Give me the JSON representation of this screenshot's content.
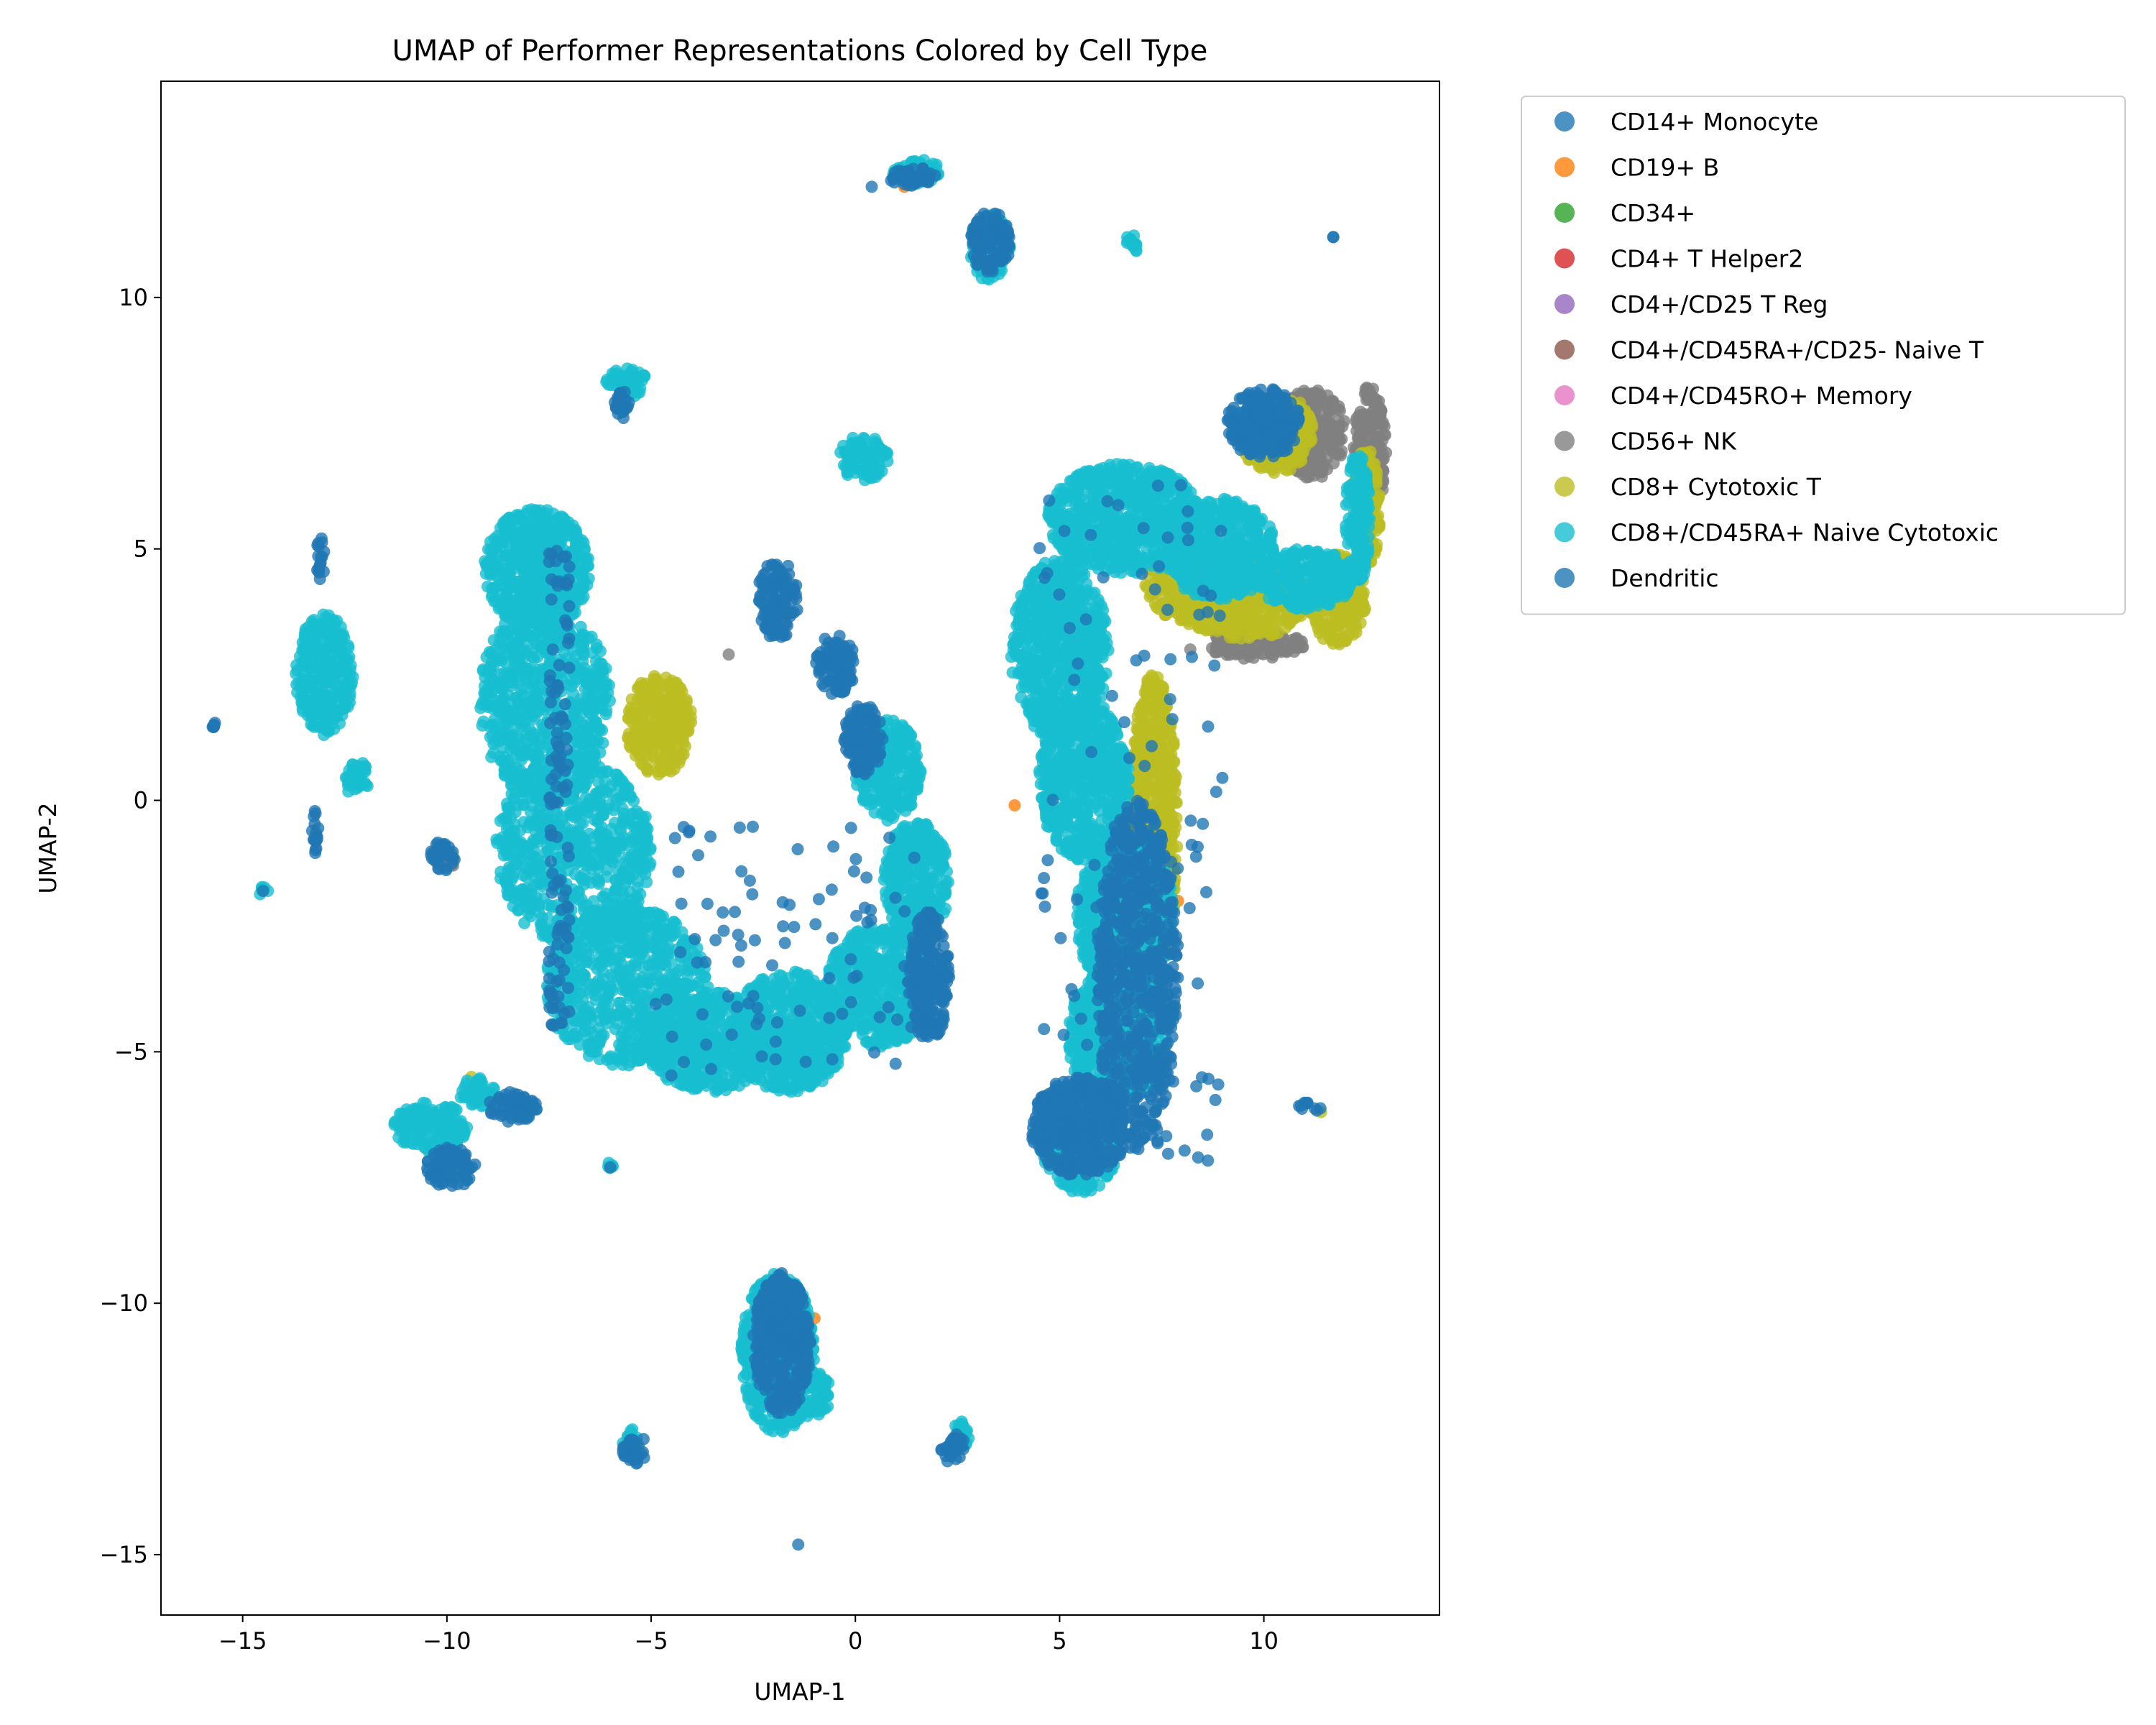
{
  "chart_data": {
    "type": "scatter",
    "title": "UMAP of Performer Representations Colored by Cell Type",
    "xlabel": "UMAP-1",
    "ylabel": "UMAP-2",
    "xlim": [
      -17,
      14.3
    ],
    "ylim": [
      -16.2,
      14.3
    ],
    "xticks": [
      -15,
      -10,
      -5,
      0,
      5,
      10
    ],
    "yticks": [
      -15,
      -10,
      -5,
      0,
      5,
      10
    ],
    "xtick_labels": [
      "−15",
      "−10",
      "−5",
      "0",
      "5",
      "10"
    ],
    "ytick_labels": [
      "−15",
      "−10",
      "−5",
      "0",
      "5",
      "10"
    ],
    "grid": false,
    "legend_position": "outside-upper-right",
    "series": [
      {
        "name": "CD14+ Monocyte",
        "color": "#1f77b4",
        "regions": [
          [
            -15.7,
            1.5,
            0.05,
            0.05
          ]
        ],
        "points": [
          [
            -15.7,
            1.5
          ],
          [
            11.7,
            11.2
          ]
        ]
      },
      {
        "name": "CD19+ B",
        "color": "#ff7f0e",
        "regions": [],
        "points": [
          [
            3.9,
            -0.1
          ],
          [
            1.2,
            12.2
          ],
          [
            -1.0,
            -10.3
          ],
          [
            7.9,
            -2.0
          ]
        ]
      },
      {
        "name": "CD34+",
        "color": "#2ca02c",
        "regions": [],
        "points": []
      },
      {
        "name": "CD4+ T Helper2",
        "color": "#d62728",
        "regions": [],
        "points": []
      },
      {
        "name": "CD4+/CD25 T Reg",
        "color": "#9467bd",
        "regions": [],
        "points": [
          [
            9.7,
            5.0
          ]
        ]
      },
      {
        "name": "CD4+/CD45RA+/CD25- Naive T",
        "color": "#8c564b",
        "regions": [],
        "points": []
      },
      {
        "name": "CD4+/CD45RO+ Memory",
        "color": "#e377c2",
        "regions": [],
        "points": [
          [
            -5.4,
            -5.0
          ],
          [
            9.6,
            5.0
          ]
        ]
      },
      {
        "name": "CD56+ NK",
        "color": "#7f7f7f",
        "regions": [
          [
            11.2,
            7.3,
            0.8,
            0.9
          ],
          [
            12.6,
            7.0,
            0.4,
            1.3
          ],
          [
            9.8,
            3.1,
            1.2,
            0.3
          ],
          [
            -10.0,
            -1.2,
            0.2,
            0.2
          ]
        ],
        "points": [
          [
            12.7,
            7.9
          ],
          [
            10.5,
            6.8
          ],
          [
            8.2,
            3.0
          ],
          [
            -3.1,
            2.9
          ]
        ]
      },
      {
        "name": "CD8+ Cytotoxic T",
        "color": "#bcbd22",
        "regions": [
          [
            9.5,
            4.0,
            1.6,
            0.8
          ],
          [
            11.8,
            4.0,
            0.7,
            0.9
          ],
          [
            12.5,
            5.8,
            0.35,
            1.2
          ],
          [
            7.3,
            -0.5,
            0.6,
            3.0
          ],
          [
            8.3,
            4.3,
            1.2,
            0.8
          ],
          [
            10.3,
            7.3,
            0.9,
            0.8
          ],
          [
            -4.8,
            1.5,
            0.8,
            1.0
          ]
        ],
        "points": [
          [
            -4.2,
            -5.4
          ],
          [
            11.4,
            -6.2
          ],
          [
            -9.4,
            -5.5
          ],
          [
            2.6,
            -12.6
          ],
          [
            -1.8,
            -9.5
          ],
          [
            9.0,
            3.5
          ]
        ]
      },
      {
        "name": "CD8+/CD45RA+ Naive Cytotoxic",
        "color": "#17becf",
        "regions": [
          [
            -7.8,
            4.6,
            1.3,
            1.2
          ],
          [
            -7.6,
            2.0,
            1.6,
            2.0
          ],
          [
            -6.9,
            -1.0,
            1.9,
            1.9
          ],
          [
            -5.6,
            -3.7,
            2.0,
            1.6
          ],
          [
            -3.6,
            -4.8,
            1.6,
            1.0
          ],
          [
            -1.6,
            -4.6,
            1.4,
            1.2
          ],
          [
            0.6,
            -3.7,
            1.3,
            1.2
          ],
          [
            1.5,
            -1.6,
            0.8,
            1.2
          ],
          [
            0.8,
            0.6,
            0.8,
            1.0
          ],
          [
            6.6,
            5.6,
            1.9,
            1.1
          ],
          [
            5.0,
            3.0,
            1.2,
            1.8
          ],
          [
            5.6,
            0.4,
            1.1,
            1.6
          ],
          [
            6.6,
            -2.3,
            1.2,
            1.6
          ],
          [
            6.4,
            -4.7,
            1.2,
            1.4
          ],
          [
            5.5,
            -6.7,
            1.0,
            1.1
          ],
          [
            8.9,
            5.0,
            1.4,
            1.0
          ],
          [
            11.0,
            4.4,
            1.2,
            0.6
          ],
          [
            12.3,
            5.6,
            0.3,
            1.3
          ],
          [
            0.2,
            6.8,
            0.6,
            0.45
          ],
          [
            -5.6,
            8.3,
            0.5,
            0.3
          ],
          [
            1.5,
            12.5,
            0.6,
            0.25
          ],
          [
            3.3,
            11.0,
            0.5,
            0.7
          ],
          [
            6.8,
            11.1,
            0.2,
            0.2
          ],
          [
            -13.0,
            2.5,
            0.7,
            1.2
          ],
          [
            -12.2,
            0.4,
            0.3,
            0.4
          ],
          [
            -10.4,
            -6.5,
            0.9,
            0.5
          ],
          [
            -9.2,
            -5.8,
            0.5,
            0.3
          ],
          [
            -1.9,
            -11.0,
            0.9,
            1.6
          ],
          [
            -1.1,
            -11.8,
            0.5,
            0.5
          ],
          [
            -14.5,
            -1.8,
            0.15,
            0.1
          ],
          [
            -6.0,
            -7.3,
            0.1,
            0.1
          ],
          [
            -5.5,
            -12.8,
            0.2,
            0.3
          ],
          [
            2.6,
            -12.6,
            0.2,
            0.3
          ]
        ],
        "points": []
      },
      {
        "name": "Dendritic",
        "color": "#1f77b4",
        "regions": [
          [
            -1.9,
            4.0,
            0.5,
            0.8
          ],
          [
            -0.5,
            2.7,
            0.5,
            0.6
          ],
          [
            0.2,
            1.2,
            0.5,
            0.7
          ],
          [
            1.8,
            -3.5,
            0.5,
            1.3
          ],
          [
            3.3,
            11.1,
            0.5,
            0.6
          ],
          [
            -9.9,
            -7.3,
            0.6,
            0.4
          ],
          [
            -8.4,
            -6.1,
            0.6,
            0.3
          ],
          [
            -1.8,
            -10.8,
            0.7,
            1.4
          ],
          [
            10.0,
            7.5,
            0.9,
            0.7
          ],
          [
            6.9,
            -3.5,
            1.0,
            3.5
          ],
          [
            5.5,
            -6.5,
            1.2,
            1.0
          ],
          [
            -13.1,
            4.8,
            0.1,
            0.5
          ],
          [
            -13.2,
            -0.6,
            0.1,
            0.5
          ],
          [
            -10.1,
            -1.1,
            0.3,
            0.3
          ],
          [
            -5.4,
            -12.9,
            0.3,
            0.3
          ],
          [
            2.4,
            -12.9,
            0.3,
            0.3
          ],
          [
            1.4,
            12.4,
            0.6,
            0.2
          ],
          [
            11.1,
            -6.1,
            0.3,
            0.1
          ],
          [
            -5.7,
            7.9,
            0.2,
            0.3
          ]
        ],
        "scatter_over": [
          [
            -7.5,
            -7.0,
            -4.5,
            5.0,
            120
          ],
          [
            -5.0,
            1.5,
            -5.5,
            -0.5,
            90
          ],
          [
            4.5,
            9.0,
            -7.5,
            6.5,
            110
          ]
        ],
        "points": [
          [
            -6.0,
            -7.3
          ],
          [
            -14.5,
            -1.8
          ],
          [
            -1.4,
            -14.8
          ],
          [
            11.7,
            11.2
          ],
          [
            -15.7,
            1.5
          ],
          [
            0.4,
            12.2
          ]
        ]
      }
    ]
  }
}
